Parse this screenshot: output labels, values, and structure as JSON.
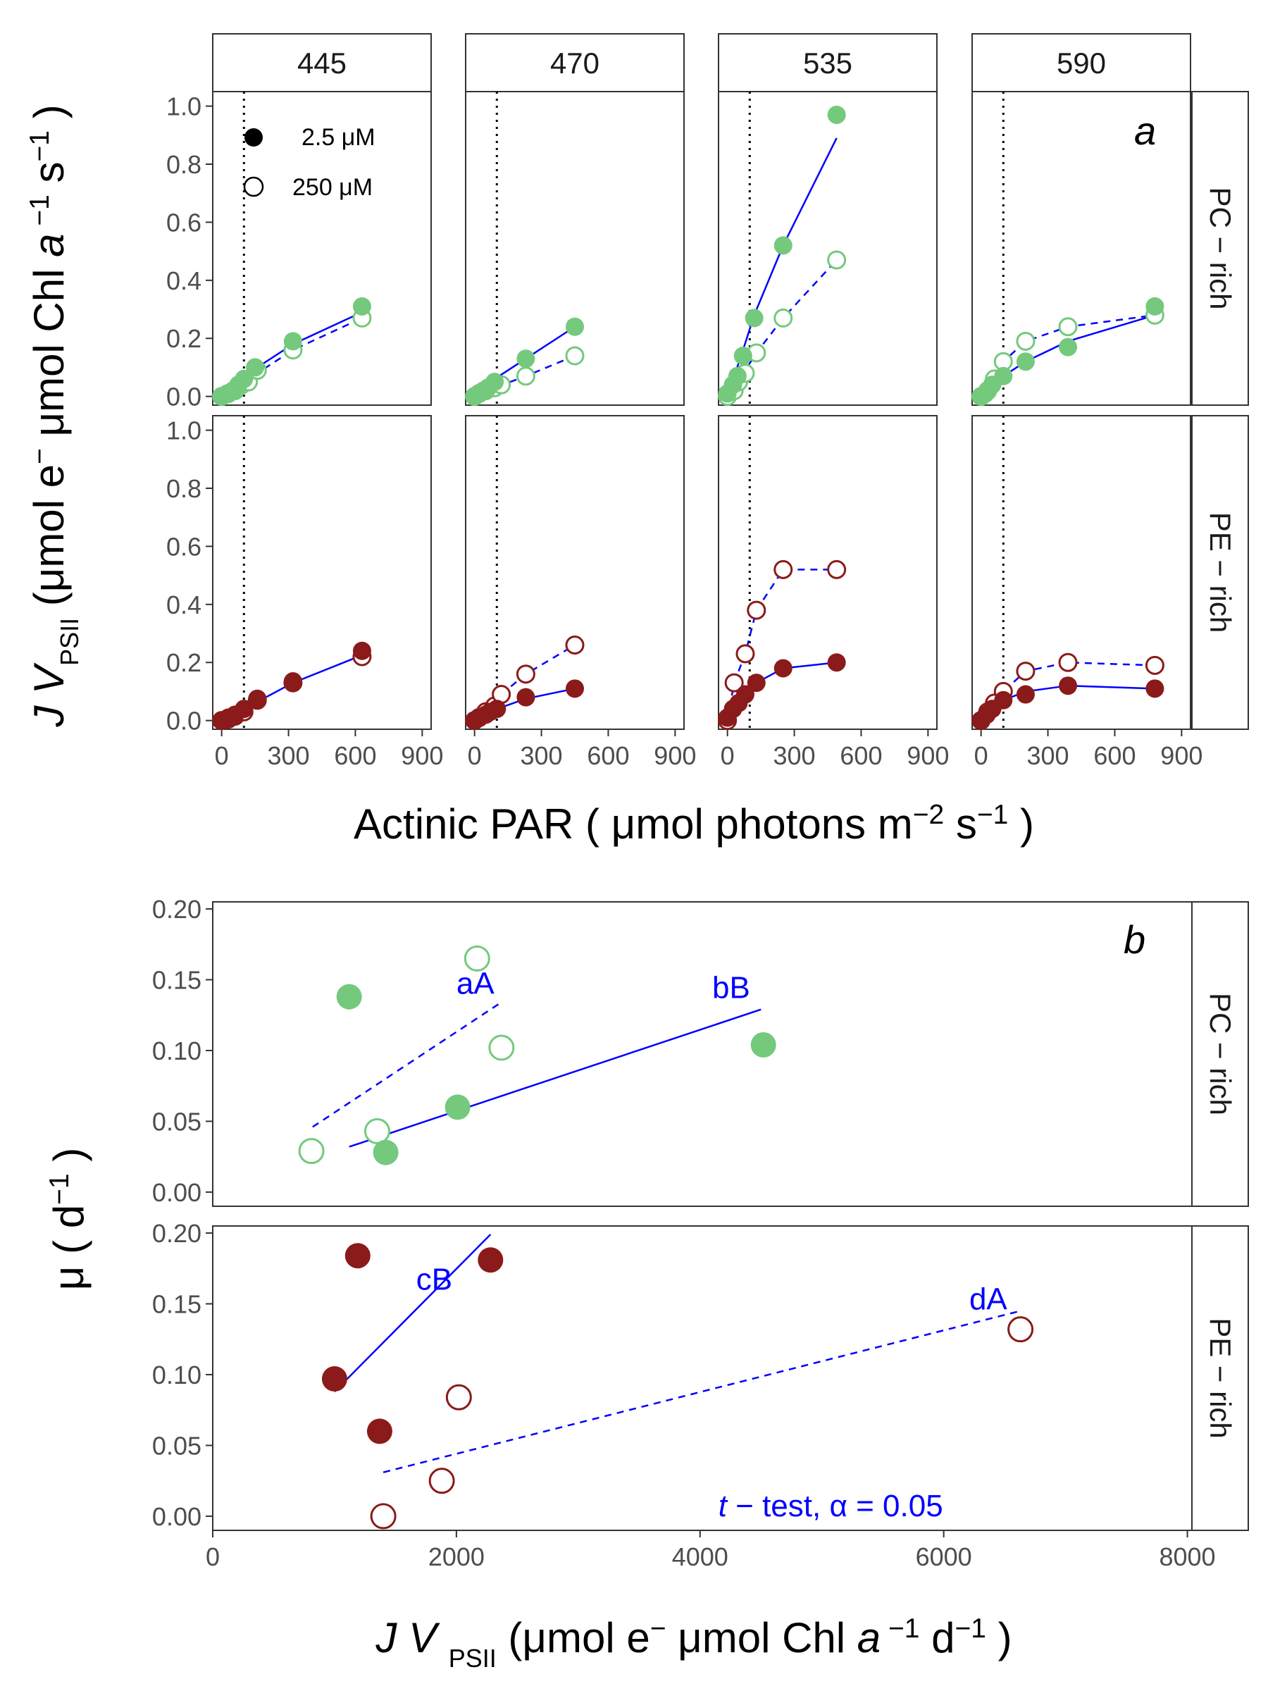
{
  "colors": {
    "pc": "#74c97d",
    "pe": "#8b1a1a",
    "fit": "#0000ff",
    "axis": "#333333",
    "strip_bg": "#ffffff"
  },
  "chart_data": [
    {
      "type": "scatter",
      "panel_label": "a",
      "facet_cols": [
        "445",
        "470",
        "535",
        "590"
      ],
      "facet_rows": [
        "PC − rich",
        "PE − rich"
      ],
      "xlabel": "Actinic PAR ( μmol photons  m⁻²  s⁻¹ )",
      "ylabel": "JV_PSII (μmol e⁻  μmol Chl a⁻¹ s⁻¹)",
      "xlim": [
        -40,
        940
      ],
      "ylim": [
        -0.03,
        1.05
      ],
      "xticks": [
        "0",
        "300",
        "600",
        "900"
      ],
      "yticks": [
        "0.0",
        "0.2",
        "0.4",
        "0.6",
        "0.8",
        "1.0"
      ],
      "vline_x": 100,
      "legend": [
        {
          "label": "2.5 μM",
          "marker": "filled"
        },
        {
          "label": "250 μM",
          "marker": "open"
        }
      ],
      "panels": [
        {
          "row": 0,
          "col": 0,
          "filled": [
            [
              0,
              0
            ],
            [
              25,
              0.01
            ],
            [
              50,
              0.02
            ],
            [
              75,
              0.04
            ],
            [
              100,
              0.06
            ],
            [
              150,
              0.1
            ],
            [
              320,
              0.19
            ],
            [
              630,
              0.31
            ]
          ],
          "open": [
            [
              0,
              0
            ],
            [
              30,
              0.01
            ],
            [
              60,
              0.02
            ],
            [
              90,
              0.04
            ],
            [
              120,
              0.05
            ],
            [
              160,
              0.09
            ],
            [
              320,
              0.16
            ],
            [
              630,
              0.27
            ]
          ],
          "fit_filled": [
            [
              0,
              0
            ],
            [
              100,
              0.07
            ],
            [
              200,
              0.12
            ],
            [
              320,
              0.18
            ],
            [
              630,
              0.29
            ]
          ],
          "fit_open": [
            [
              0,
              0
            ],
            [
              100,
              0.05
            ],
            [
              200,
              0.1
            ],
            [
              320,
              0.16
            ],
            [
              630,
              0.27
            ]
          ]
        },
        {
          "row": 0,
          "col": 1,
          "filled": [
            [
              0,
              0
            ],
            [
              20,
              0.01
            ],
            [
              40,
              0.02
            ],
            [
              60,
              0.03
            ],
            [
              90,
              0.05
            ],
            [
              230,
              0.13
            ],
            [
              450,
              0.24
            ]
          ],
          "open": [
            [
              0,
              0
            ],
            [
              20,
              0.01
            ],
            [
              50,
              0.02
            ],
            [
              90,
              0.03
            ],
            [
              120,
              0.04
            ],
            [
              230,
              0.07
            ],
            [
              450,
              0.14
            ]
          ],
          "fit_filled": [
            [
              0,
              0
            ],
            [
              90,
              0.06
            ],
            [
              230,
              0.13
            ],
            [
              450,
              0.24
            ]
          ],
          "fit_open": [
            [
              0,
              0
            ],
            [
              90,
              0.03
            ],
            [
              230,
              0.07
            ],
            [
              450,
              0.14
            ]
          ]
        },
        {
          "row": 0,
          "col": 2,
          "filled": [
            [
              0,
              0.01
            ],
            [
              25,
              0.04
            ],
            [
              45,
              0.07
            ],
            [
              70,
              0.14
            ],
            [
              120,
              0.27
            ],
            [
              250,
              0.52
            ],
            [
              490,
              0.97
            ]
          ],
          "open": [
            [
              0,
              0
            ],
            [
              30,
              0.02
            ],
            [
              50,
              0.05
            ],
            [
              80,
              0.08
            ],
            [
              130,
              0.15
            ],
            [
              250,
              0.27
            ],
            [
              490,
              0.47
            ]
          ],
          "fit_filled": [
            [
              0,
              0
            ],
            [
              70,
              0.16
            ],
            [
              120,
              0.28
            ],
            [
              250,
              0.52
            ],
            [
              490,
              0.89
            ]
          ],
          "fit_open": [
            [
              0,
              0
            ],
            [
              80,
              0.09
            ],
            [
              130,
              0.15
            ],
            [
              250,
              0.27
            ],
            [
              490,
              0.47
            ]
          ]
        },
        {
          "row": 0,
          "col": 3,
          "filled": [
            [
              0,
              0
            ],
            [
              20,
              0.01
            ],
            [
              50,
              0.04
            ],
            [
              100,
              0.07
            ],
            [
              200,
              0.12
            ],
            [
              390,
              0.17
            ],
            [
              780,
              0.31
            ]
          ],
          "open": [
            [
              0,
              0
            ],
            [
              30,
              0.02
            ],
            [
              60,
              0.06
            ],
            [
              100,
              0.12
            ],
            [
              200,
              0.19
            ],
            [
              390,
              0.24
            ],
            [
              780,
              0.28
            ]
          ],
          "fit_filled": [
            [
              0,
              0
            ],
            [
              100,
              0.07
            ],
            [
              200,
              0.12
            ],
            [
              390,
              0.19
            ],
            [
              780,
              0.28
            ]
          ],
          "fit_open": [
            [
              0,
              0
            ],
            [
              60,
              0.06
            ],
            [
              100,
              0.12
            ],
            [
              200,
              0.19
            ],
            [
              390,
              0.24
            ],
            [
              780,
              0.28
            ]
          ]
        },
        {
          "row": 1,
          "col": 0,
          "filled": [
            [
              0,
              0
            ],
            [
              30,
              0.01
            ],
            [
              60,
              0.02
            ],
            [
              100,
              0.04
            ],
            [
              160,
              0.075
            ],
            [
              320,
              0.135
            ],
            [
              630,
              0.24
            ]
          ],
          "open": [
            [
              0,
              0
            ],
            [
              30,
              0.005
            ],
            [
              60,
              0.015
            ],
            [
              100,
              0.03
            ],
            [
              160,
              0.07
            ],
            [
              320,
              0.13
            ],
            [
              630,
              0.22
            ]
          ],
          "fit_filled": [
            [
              0,
              0
            ],
            [
              100,
              0.04
            ],
            [
              320,
              0.13
            ],
            [
              630,
              0.225
            ]
          ],
          "fit_open": []
        },
        {
          "row": 1,
          "col": 1,
          "filled": [
            [
              0,
              0
            ],
            [
              20,
              0.01
            ],
            [
              50,
              0.02
            ],
            [
              70,
              0.03
            ],
            [
              100,
              0.04
            ],
            [
              230,
              0.08
            ],
            [
              450,
              0.11
            ]
          ],
          "open": [
            [
              0,
              0
            ],
            [
              20,
              0.01
            ],
            [
              50,
              0.03
            ],
            [
              90,
              0.05
            ],
            [
              120,
              0.09
            ],
            [
              230,
              0.16
            ],
            [
              450,
              0.26
            ]
          ],
          "fit_filled": [
            [
              0,
              0
            ],
            [
              100,
              0.04
            ],
            [
              230,
              0.075
            ],
            [
              450,
              0.11
            ]
          ],
          "fit_open": [
            [
              0,
              0
            ],
            [
              90,
              0.05
            ],
            [
              120,
              0.09
            ],
            [
              230,
              0.16
            ],
            [
              450,
              0.26
            ]
          ]
        },
        {
          "row": 1,
          "col": 2,
          "filled": [
            [
              0,
              0.01
            ],
            [
              25,
              0.04
            ],
            [
              50,
              0.06
            ],
            [
              80,
              0.09
            ],
            [
              130,
              0.13
            ],
            [
              250,
              0.18
            ],
            [
              490,
              0.2
            ]
          ],
          "open": [
            [
              0,
              0
            ],
            [
              30,
              0.13
            ],
            [
              80,
              0.23
            ],
            [
              130,
              0.38
            ],
            [
              250,
              0.52
            ],
            [
              490,
              0.52
            ]
          ],
          "fit_filled": [
            [
              0,
              0
            ],
            [
              50,
              0.06
            ],
            [
              80,
              0.09
            ],
            [
              130,
              0.13
            ],
            [
              250,
              0.18
            ],
            [
              490,
              0.2
            ]
          ],
          "fit_open": [
            [
              0,
              0
            ],
            [
              30,
              0.13
            ],
            [
              80,
              0.23
            ],
            [
              130,
              0.38
            ],
            [
              250,
              0.52
            ],
            [
              490,
              0.52
            ]
          ]
        },
        {
          "row": 1,
          "col": 3,
          "filled": [
            [
              0,
              0
            ],
            [
              25,
              0.02
            ],
            [
              50,
              0.04
            ],
            [
              100,
              0.07
            ],
            [
              200,
              0.09
            ],
            [
              390,
              0.12
            ],
            [
              780,
              0.11
            ]
          ],
          "open": [
            [
              0,
              0
            ],
            [
              30,
              0.03
            ],
            [
              60,
              0.06
            ],
            [
              100,
              0.1
            ],
            [
              200,
              0.17
            ],
            [
              390,
              0.2
            ],
            [
              780,
              0.19
            ]
          ],
          "fit_filled": [
            [
              0,
              0
            ],
            [
              100,
              0.07
            ],
            [
              200,
              0.1
            ],
            [
              390,
              0.12
            ],
            [
              780,
              0.11
            ]
          ],
          "fit_open": [
            [
              0,
              0
            ],
            [
              60,
              0.06
            ],
            [
              100,
              0.1
            ],
            [
              200,
              0.17
            ],
            [
              390,
              0.2
            ],
            [
              780,
              0.19
            ]
          ]
        }
      ]
    },
    {
      "type": "scatter",
      "panel_label": "b",
      "facet_rows": [
        "PC − rich",
        "PE − rich"
      ],
      "xlabel": "JV_PSII (μmol e⁻  μmol Chl a⁻¹  d⁻¹ )",
      "ylabel": "μ  ( d⁻¹ )",
      "xlim": [
        0,
        8500
      ],
      "ylim": [
        -0.01,
        0.205
      ],
      "xticks": [
        "0",
        "2000",
        "4000",
        "6000",
        "8000"
      ],
      "yticks": [
        "0.00",
        "0.05",
        "0.10",
        "0.15",
        "0.20"
      ],
      "vline_x": 8000,
      "annotation": "t − test, α = 0.05",
      "panels": [
        {
          "row": 0,
          "filled": [
            [
              1120,
              0.138
            ],
            [
              1420,
              0.028
            ],
            [
              2010,
              0.06
            ],
            [
              4520,
              0.104
            ]
          ],
          "open": [
            [
              810,
              0.029
            ],
            [
              1350,
              0.043
            ],
            [
              2170,
              0.165
            ],
            [
              2370,
              0.102
            ]
          ],
          "fit_filled": [
            [
              1120,
              0.032
            ],
            [
              4500,
              0.129
            ]
          ],
          "fit_open": [
            [
              820,
              0.046
            ],
            [
              2350,
              0.133
            ]
          ],
          "labels": [
            {
              "text": "aA",
              "x": 2000,
              "y": 0.14
            },
            {
              "text": "bB",
              "x": 4100,
              "y": 0.137
            }
          ]
        },
        {
          "row": 1,
          "filled": [
            [
              1000,
              0.097
            ],
            [
              1190,
              0.184
            ],
            [
              1370,
              0.06
            ],
            [
              2280,
              0.181
            ]
          ],
          "open": [
            [
              1400,
              0.0
            ],
            [
              1880,
              0.025
            ],
            [
              2020,
              0.084
            ],
            [
              6630,
              0.132
            ]
          ],
          "fit_filled": [
            [
              1000,
              0.088
            ],
            [
              2280,
              0.199
            ]
          ],
          "fit_open": [
            [
              1400,
              0.031
            ],
            [
              6630,
              0.145
            ]
          ],
          "labels": [
            {
              "text": "cB",
              "x": 1670,
              "y": 0.16
            },
            {
              "text": "dA",
              "x": 6210,
              "y": 0.146
            }
          ]
        }
      ]
    }
  ]
}
